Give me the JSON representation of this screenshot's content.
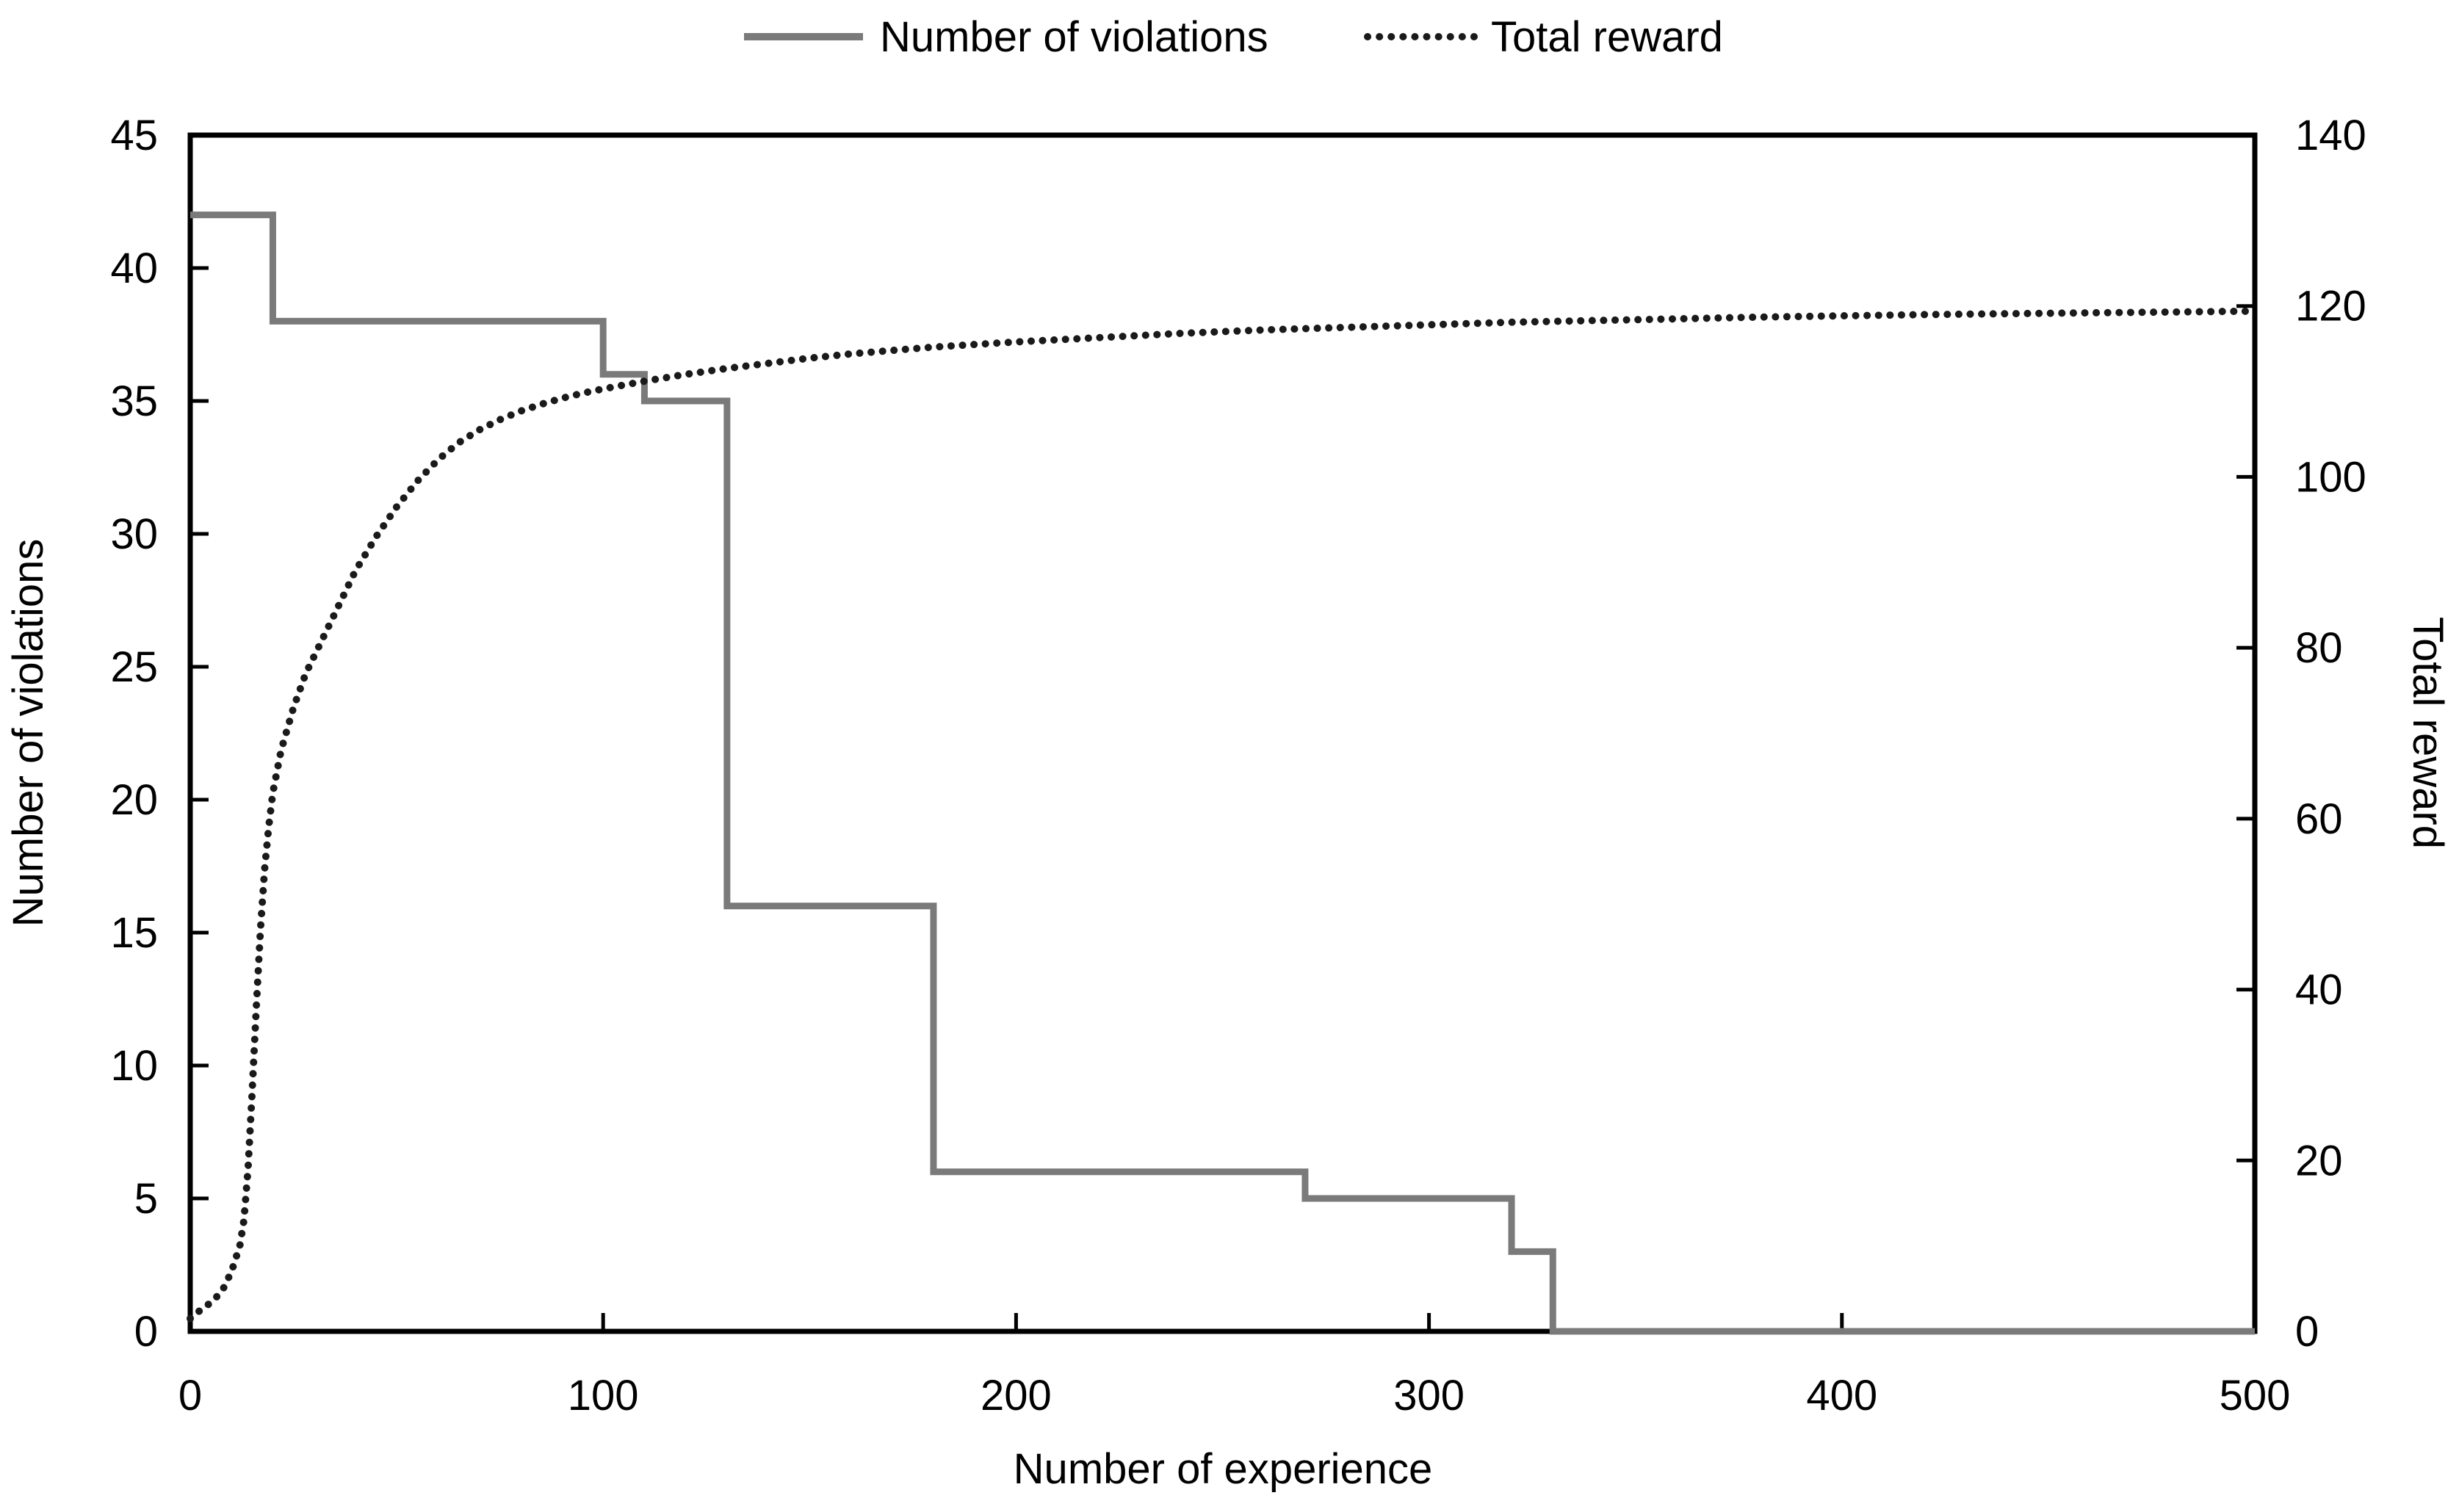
{
  "chart_data": {
    "type": "line",
    "title": "",
    "legend": {
      "position": "top-center",
      "items": [
        {
          "label": "Number of violations",
          "style": "solid",
          "color": "#7a7a7a"
        },
        {
          "label": "Total reward",
          "style": "dotted",
          "color": "#1a1a1a"
        }
      ]
    },
    "x_axis": {
      "label": "Number of experience",
      "min": 0,
      "max": 500,
      "ticks": [
        0,
        100,
        200,
        300,
        400,
        500
      ],
      "grid": false
    },
    "y_axis_left": {
      "label": "Number of violations",
      "min": 0,
      "max": 45,
      "ticks": [
        0,
        5,
        10,
        15,
        20,
        25,
        30,
        35,
        40,
        45
      ],
      "grid": false
    },
    "y_axis_right": {
      "label": "Total reward",
      "min": 0,
      "max": 140,
      "ticks": [
        0,
        20,
        40,
        60,
        80,
        100,
        120,
        140
      ],
      "grid": false
    },
    "axis_color": "#000000",
    "series": [
      {
        "name": "Number of violations",
        "axis": "left",
        "style": "step-solid",
        "color": "#7a7a7a",
        "step_segments": [
          [
            0,
            42
          ],
          [
            20,
            38
          ],
          [
            100,
            36
          ],
          [
            110,
            35
          ],
          [
            130,
            16
          ],
          [
            180,
            6
          ],
          [
            270,
            5
          ],
          [
            320,
            3
          ],
          [
            330,
            0
          ]
        ],
        "end_x": 500
      },
      {
        "name": "Total reward",
        "axis": "right",
        "style": "dotted",
        "color": "#1a1a1a",
        "points": [
          [
            0,
            1.5
          ],
          [
            2,
            2.3
          ],
          [
            4,
            3
          ],
          [
            6,
            3.8
          ],
          [
            8,
            5
          ],
          [
            10,
            7
          ],
          [
            12,
            10
          ],
          [
            13,
            13
          ],
          [
            14,
            19
          ],
          [
            15,
            28
          ],
          [
            16,
            38
          ],
          [
            17,
            47
          ],
          [
            18,
            54
          ],
          [
            19,
            59
          ],
          [
            20,
            63
          ],
          [
            22,
            68
          ],
          [
            25,
            73
          ],
          [
            28,
            77
          ],
          [
            31,
            80
          ],
          [
            35,
            84
          ],
          [
            40,
            89
          ],
          [
            45,
            93
          ],
          [
            50,
            96.5
          ],
          [
            55,
            99.5
          ],
          [
            60,
            102
          ],
          [
            65,
            104
          ],
          [
            70,
            105.5
          ],
          [
            75,
            106.7
          ],
          [
            80,
            107.7
          ],
          [
            85,
            108.5
          ],
          [
            90,
            109.2
          ],
          [
            95,
            109.8
          ],
          [
            100,
            110.3
          ],
          [
            110,
            111.2
          ],
          [
            120,
            112
          ],
          [
            130,
            112.7
          ],
          [
            140,
            113.3
          ],
          [
            150,
            113.9
          ],
          [
            160,
            114.4
          ],
          [
            170,
            114.8
          ],
          [
            180,
            115.2
          ],
          [
            190,
            115.5
          ],
          [
            200,
            115.8
          ],
          [
            220,
            116.3
          ],
          [
            240,
            116.8
          ],
          [
            260,
            117.2
          ],
          [
            280,
            117.5
          ],
          [
            300,
            117.8
          ],
          [
            320,
            118.1
          ],
          [
            340,
            118.3
          ],
          [
            360,
            118.5
          ],
          [
            380,
            118.7
          ],
          [
            400,
            118.85
          ],
          [
            420,
            119.0
          ],
          [
            440,
            119.1
          ],
          [
            460,
            119.2
          ],
          [
            480,
            119.3
          ],
          [
            500,
            119.4
          ]
        ]
      }
    ]
  }
}
